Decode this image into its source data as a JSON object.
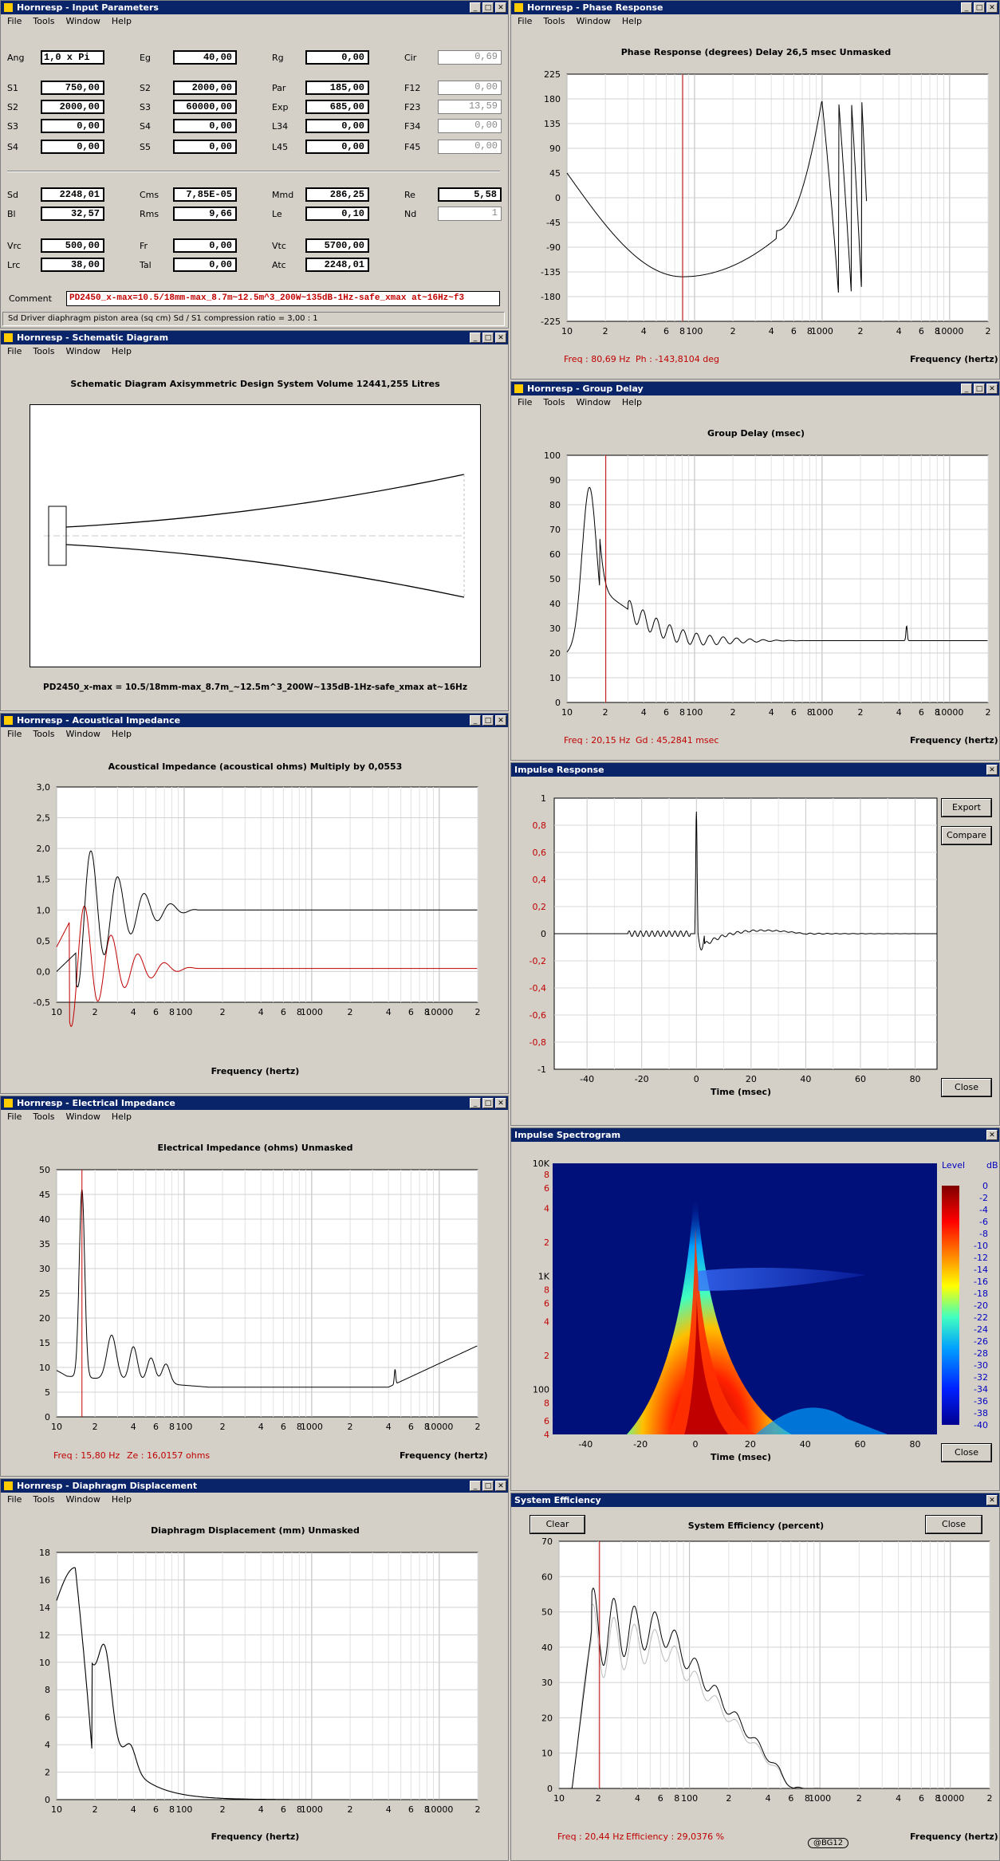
{
  "menu": [
    "File",
    "Tools",
    "Window",
    "Help"
  ],
  "input_params": {
    "title": "Hornresp - Input Parameters",
    "labels": [
      "Ang",
      "Eg",
      "Rg",
      "Cir",
      "S1",
      "S2",
      "Par",
      "F12",
      "S2",
      "S3",
      "Exp",
      "F23",
      "S3",
      "S4",
      "L34",
      "F34",
      "S4",
      "S5",
      "L45",
      "F45",
      "Sd",
      "Cms",
      "Mmd",
      "Re",
      "Bl",
      "Rms",
      "Le",
      "Nd",
      "Vrc",
      "Fr",
      "Vtc",
      "Lrc",
      "Tal",
      "Atc"
    ],
    "values": [
      "1,0 x Pi",
      "40,00",
      "0,00",
      "0,69",
      "750,00",
      "2000,00",
      "185,00",
      "0,00",
      "2000,00",
      "60000,00",
      "685,00",
      "13,59",
      "0,00",
      "0,00",
      "0,00",
      "0,00",
      "0,00",
      "0,00",
      "0,00",
      "0,00",
      "2248,01",
      "7,85E-05",
      "286,25",
      "5,58",
      "32,57",
      "9,66",
      "0,10",
      "1",
      "500,00",
      "0,00",
      "5700,00",
      "38,00",
      "0,00",
      "2248,01"
    ],
    "comment_label": "Comment",
    "comment": "PD2450_x-max=10.5/18mm-max_8.7m~12.5m^3_200W~135dB-1Hz-safe_xmax at~16Hz~f3",
    "status": "Sd   Driver diaphragm piston area (sq cm)   Sd / S1 compression ratio = 3,00 : 1"
  },
  "phase": {
    "title": "Hornresp - Phase Response",
    "heading": "Phase Response (degrees)   Delay 26,5 msec   Unmasked",
    "freq": "Freq : 80,69 Hz",
    "val": "Ph : -143,8104 deg",
    "xlabel": "Frequency (hertz)",
    "yticks": [
      "225",
      "180",
      "135",
      "90",
      "45",
      "0",
      "-45",
      "-90",
      "-135",
      "-180",
      "-225"
    ]
  },
  "schematic": {
    "title": "Hornresp - Schematic Diagram",
    "heading": "Schematic Diagram   Axisymmetric Design   System Volume 12441,255 Litres",
    "caption": "PD2450_x-max = 10.5/18mm-max_8.7m_~12.5m^3_200W~135dB-1Hz-safe_xmax at~16Hz"
  },
  "group": {
    "title": "Hornresp - Group Delay",
    "heading": "Group Delay (msec)",
    "freq": "Freq : 20,15 Hz",
    "val": "Gd : 45,2841 msec",
    "xlabel": "Frequency (hertz)",
    "yticks": [
      "100",
      "90",
      "80",
      "70",
      "60",
      "50",
      "40",
      "30",
      "20",
      "10",
      "0"
    ]
  },
  "acoustic": {
    "title": "Hornresp - Acoustical Impedance",
    "heading": "Acoustical Impedance (acoustical ohms)   Multiply by 0,0553",
    "xlabel": "Frequency (hertz)",
    "yticks": [
      "3,0",
      "2,5",
      "2,0",
      "1,5",
      "1,0",
      "0,5",
      "0,0",
      "-0,5"
    ]
  },
  "impulse": {
    "title": "Impulse Response",
    "export": "Export",
    "compare": "Compare",
    "close": "Close",
    "xlabel": "Time (msec)",
    "yticks": [
      "1",
      "0,8",
      "0,6",
      "0,4",
      "0,2",
      "0",
      "-0,2",
      "-0,4",
      "-0,6",
      "-0,8",
      "-1"
    ],
    "xticks": [
      "-40",
      "-20",
      "0",
      "20",
      "40",
      "60",
      "80"
    ]
  },
  "electrical": {
    "title": "Hornresp - Electrical Impedance",
    "heading": "Electrical Impedance (ohms)   Unmasked",
    "freq": "Freq : 15,80 Hz",
    "val": "Ze : 16,0157 ohms",
    "xlabel": "Frequency (hertz)",
    "yticks": [
      "50",
      "45",
      "40",
      "35",
      "30",
      "25",
      "20",
      "15",
      "10",
      "5",
      "0"
    ]
  },
  "spectrogram": {
    "title": "Impulse Spectrogram",
    "close": "Close",
    "xlabel": "Time (msec)",
    "level": "Level",
    "db": "dB",
    "yticks": [
      "10K",
      "8",
      "6",
      "4",
      "2",
      "1K",
      "8",
      "6",
      "4",
      "2",
      "100",
      "8",
      "6",
      "4"
    ],
    "xticks": [
      "-40",
      "-20",
      "0",
      "20",
      "40",
      "60",
      "80"
    ],
    "scale": [
      "0",
      "-2",
      "-4",
      "-6",
      "-8",
      "-10",
      "-12",
      "-14",
      "-16",
      "-18",
      "-20",
      "-22",
      "-24",
      "-26",
      "-28",
      "-30",
      "-32",
      "-34",
      "-36",
      "-38",
      "-40"
    ]
  },
  "displacement": {
    "title": "Hornresp - Diaphragm Displacement",
    "heading": "Diaphragm Displacement (mm)   Unmasked",
    "xlabel": "Frequency (hertz)",
    "yticks": [
      "18",
      "16",
      "14",
      "12",
      "10",
      "8",
      "6",
      "4",
      "2",
      "0"
    ]
  },
  "efficiency": {
    "title": "System Efficiency",
    "clear": "Clear",
    "close": "Close",
    "heading": "System Efficiency (percent)",
    "freq": "Freq : 20,44 Hz",
    "val": "Efficiency : 29,0376 %",
    "xlabel": "Frequency (hertz)",
    "watermark": "@BG12",
    "yticks": [
      "70",
      "60",
      "50",
      "40",
      "30",
      "20",
      "10",
      "0"
    ]
  },
  "xticks_freq": [
    "10",
    "2",
    "4",
    "6",
    "8",
    "100",
    "2",
    "4",
    "6",
    "8",
    "1000",
    "2",
    "4",
    "6",
    "8",
    "10000",
    "2"
  ],
  "colors": {
    "title_bar": "#0a246a",
    "window": "#d4d0c8",
    "cursor": "#c00000",
    "curve": "#000000",
    "grid": "#d8d8d8"
  }
}
